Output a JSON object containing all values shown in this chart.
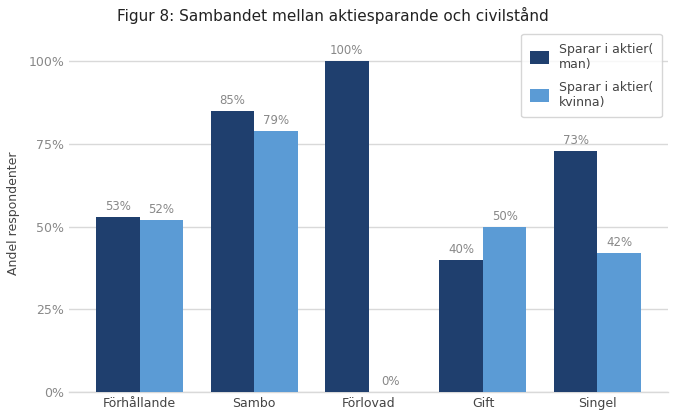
{
  "title": "Figur 8: Sambandet mellan aktiesparande och civilstånd",
  "categories": [
    "Förhållande",
    "Sambo",
    "Förlovad",
    "Gift",
    "Singel"
  ],
  "series_man": [
    53,
    85,
    100,
    40,
    73
  ],
  "series_kvinna": [
    52,
    79,
    0,
    50,
    42
  ],
  "color_man": "#1f3f6e",
  "color_kvinna": "#5b9bd5",
  "ylabel": "Andel respondenter",
  "legend_man": "Sparar i aktier(\nman)",
  "legend_kvinna": "Sparar i aktier(\nkvinna)",
  "ylim": [
    0,
    108
  ],
  "yticks": [
    0,
    25,
    50,
    75,
    100
  ],
  "bar_width": 0.38,
  "bg_color": "#ffffff",
  "plot_bg_color": "#ffffff",
  "grid_color": "#d9d9d9",
  "title_fontsize": 11,
  "label_fontsize": 9,
  "tick_fontsize": 9,
  "annotation_fontsize": 8.5,
  "annotation_color": "#888888",
  "ytick_color": "#888888",
  "xtick_color": "#444444"
}
